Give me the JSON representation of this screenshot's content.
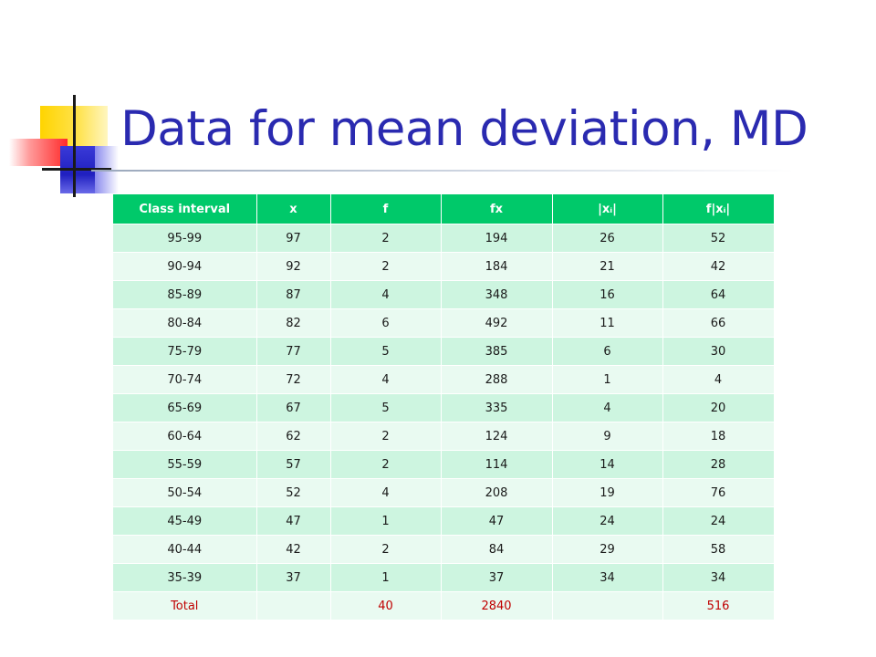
{
  "slide": {
    "title": "Data for mean deviation, MD"
  },
  "table": {
    "headers": [
      "Class interval",
      "x",
      "f",
      "fx",
      "|xᵢ|",
      "f|xᵢ|"
    ],
    "rows": [
      [
        "95-99",
        "97",
        "2",
        "194",
        "26",
        "52"
      ],
      [
        "90-94",
        "92",
        "2",
        "184",
        "21",
        "42"
      ],
      [
        "85-89",
        "87",
        "4",
        "348",
        "16",
        "64"
      ],
      [
        "80-84",
        "82",
        "6",
        "492",
        "11",
        "66"
      ],
      [
        "75-79",
        "77",
        "5",
        "385",
        "6",
        "30"
      ],
      [
        "70-74",
        "72",
        "4",
        "288",
        "1",
        "4"
      ],
      [
        "65-69",
        "67",
        "5",
        "335",
        "4",
        "20"
      ],
      [
        "60-64",
        "62",
        "2",
        "124",
        "9",
        "18"
      ],
      [
        "55-59",
        "57",
        "2",
        "114",
        "14",
        "28"
      ],
      [
        "50-54",
        "52",
        "4",
        "208",
        "19",
        "76"
      ],
      [
        "45-49",
        "47",
        "1",
        "47",
        "24",
        "24"
      ],
      [
        "40-44",
        "42",
        "2",
        "84",
        "29",
        "58"
      ],
      [
        "35-39",
        "37",
        "1",
        "37",
        "34",
        "34"
      ]
    ],
    "total": [
      "Total",
      "",
      "40",
      "2840",
      "",
      "516"
    ]
  },
  "colors": {
    "title": "#2a2ab0",
    "header_bg": "#00c96a",
    "row_dark": "#cdf5e0",
    "row_light": "#e9faf1",
    "total_text": "#c00000"
  }
}
